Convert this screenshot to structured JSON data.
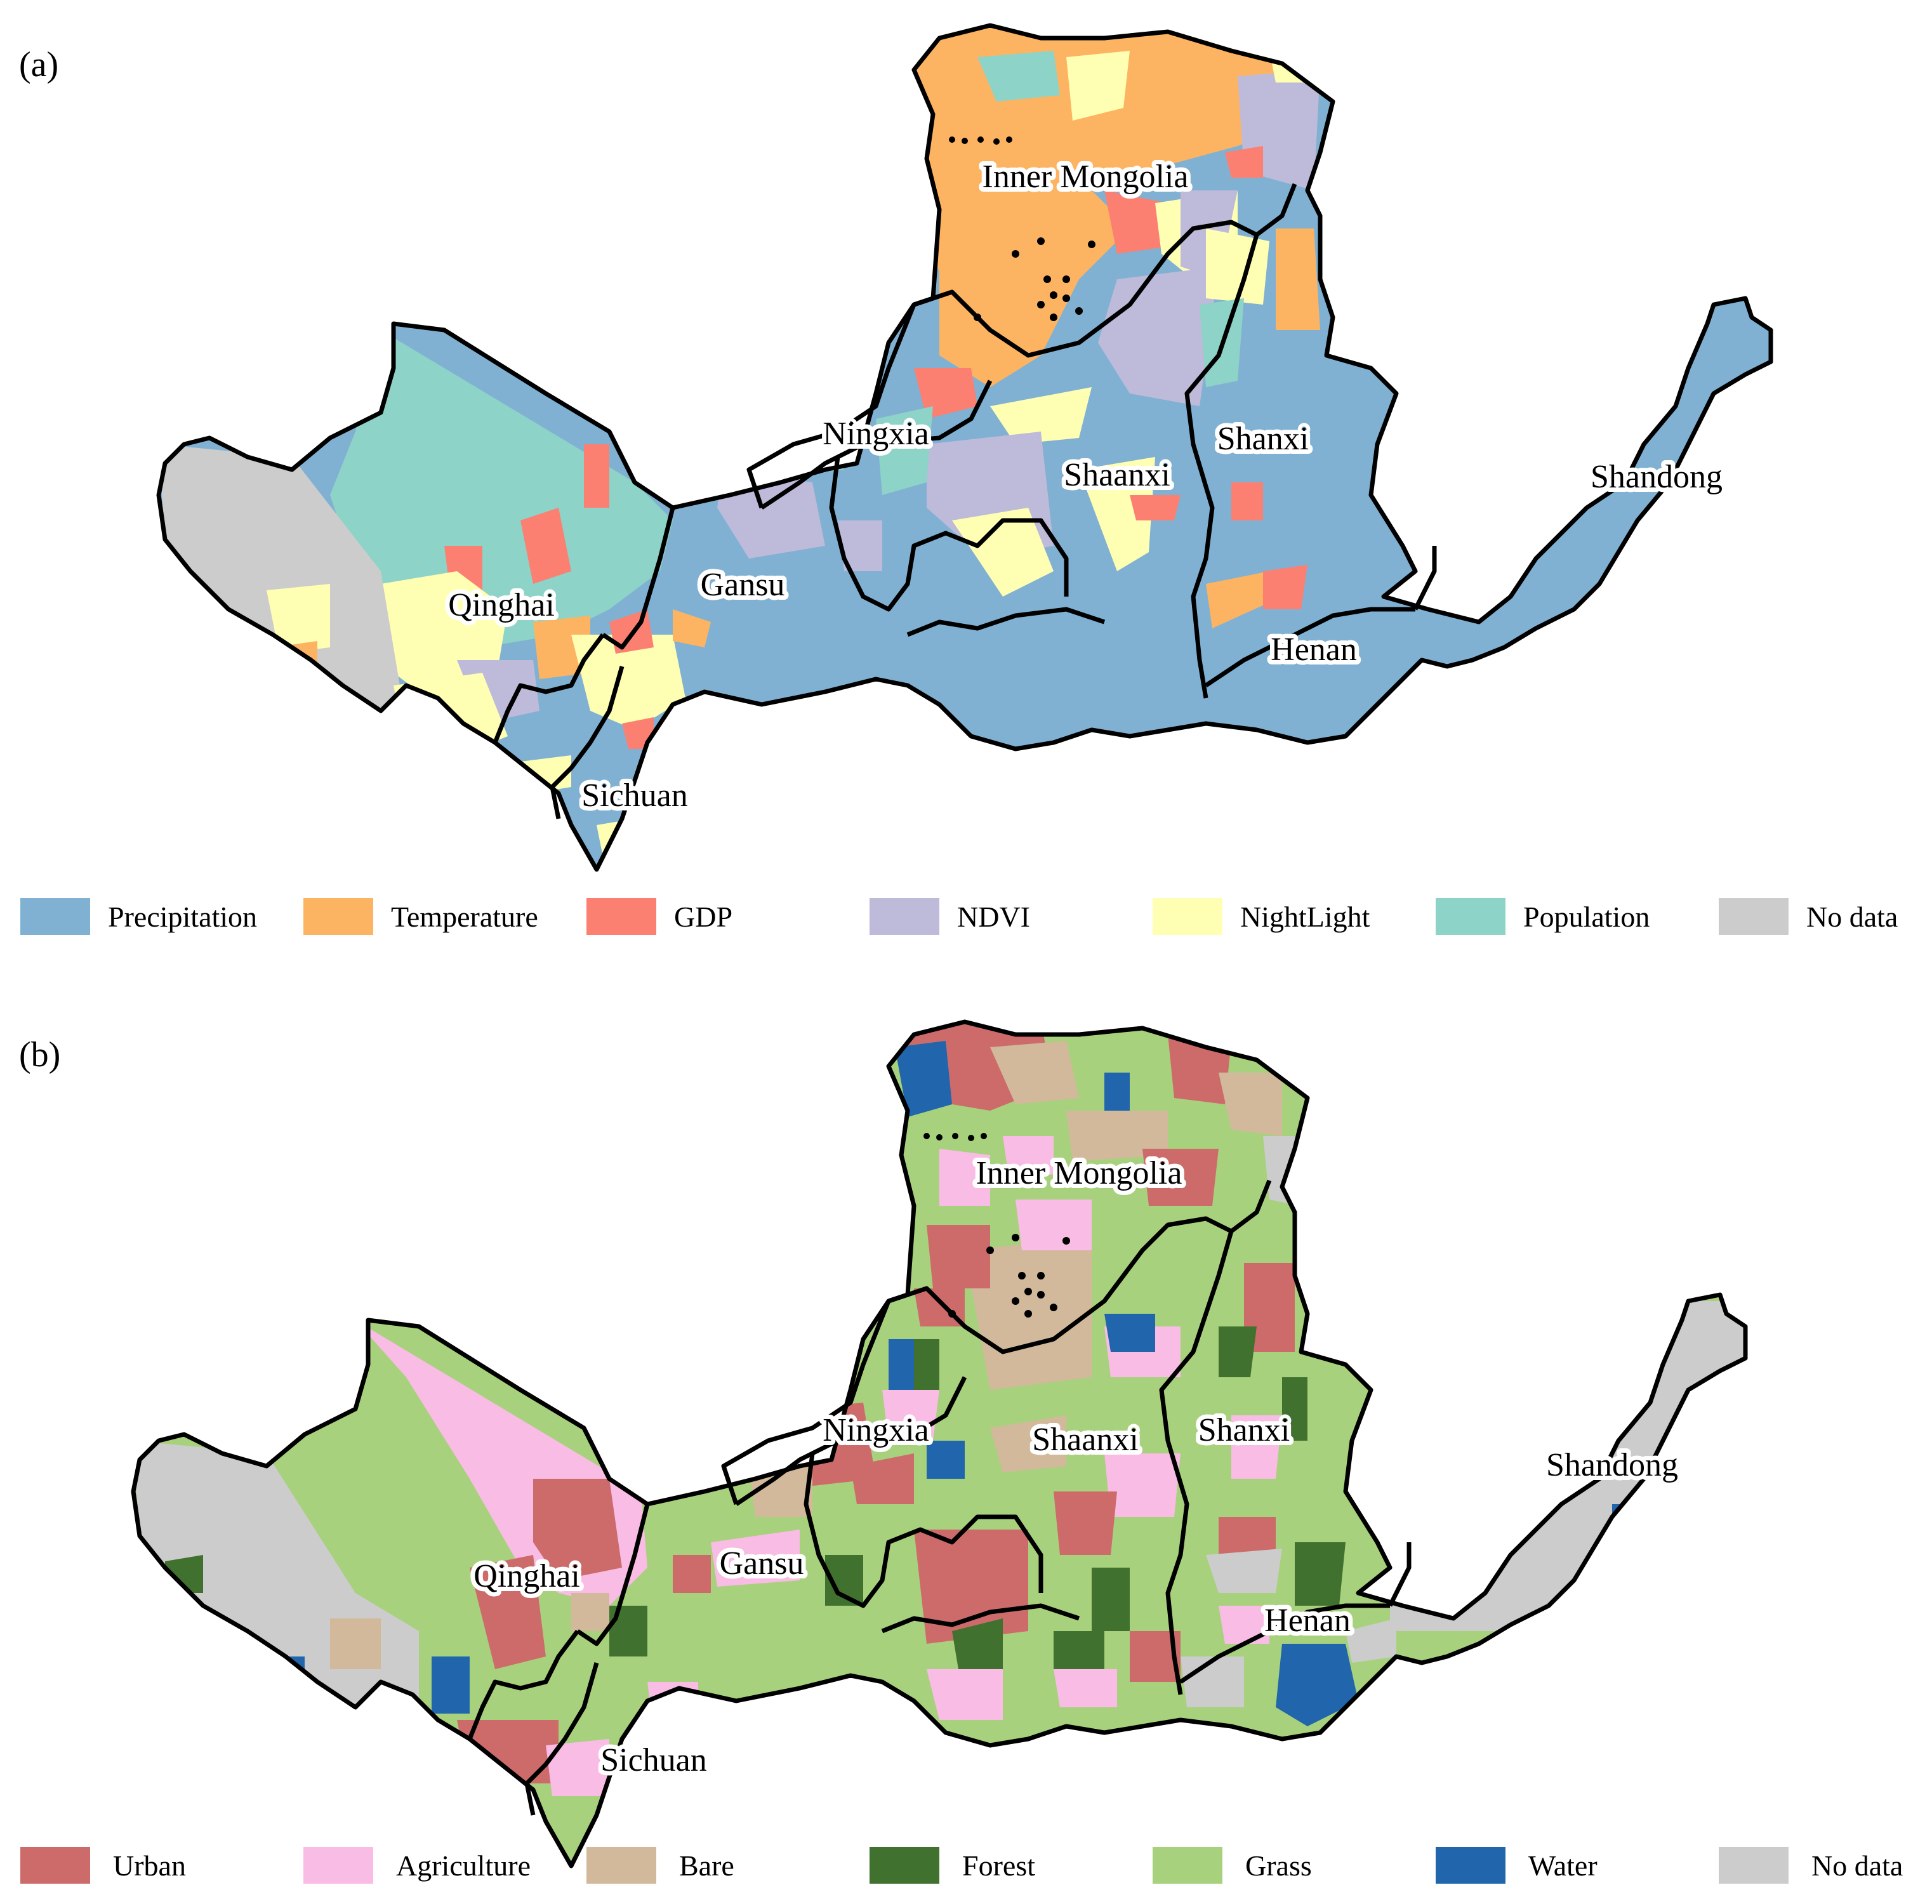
{
  "panels": [
    {
      "label": "(a)",
      "legend": [
        {
          "label": "Precipitation",
          "color": "#80b1d3"
        },
        {
          "label": "Temperature",
          "color": "#fdb462"
        },
        {
          "label": "GDP",
          "color": "#fb8072"
        },
        {
          "label": "NDVI",
          "color": "#bebada"
        },
        {
          "label": "NightLight",
          "color": "#ffffb3"
        },
        {
          "label": "Population",
          "color": "#8dd3c7"
        },
        {
          "label": "No data",
          "color": "#cccccc"
        }
      ]
    },
    {
      "label": "(b)",
      "legend": [
        {
          "label": "Urban",
          "color": "#cd6b6b"
        },
        {
          "label": "Agriculture",
          "color": "#f9bce5"
        },
        {
          "label": "Bare",
          "color": "#d2b99b"
        },
        {
          "label": "Forest",
          "color": "#40712f"
        },
        {
          "label": "Grass",
          "color": "#a8d17d"
        },
        {
          "label": "Water",
          "color": "#2166ac"
        },
        {
          "label": "No data",
          "color": "#cccccc"
        }
      ]
    }
  ],
  "provinces": [
    "Inner Mongolia",
    "Ningxia",
    "Shanxi",
    "Shaanxi",
    "Shandong",
    "Gansu",
    "Qinghai",
    "Henan",
    "Sichuan"
  ]
}
